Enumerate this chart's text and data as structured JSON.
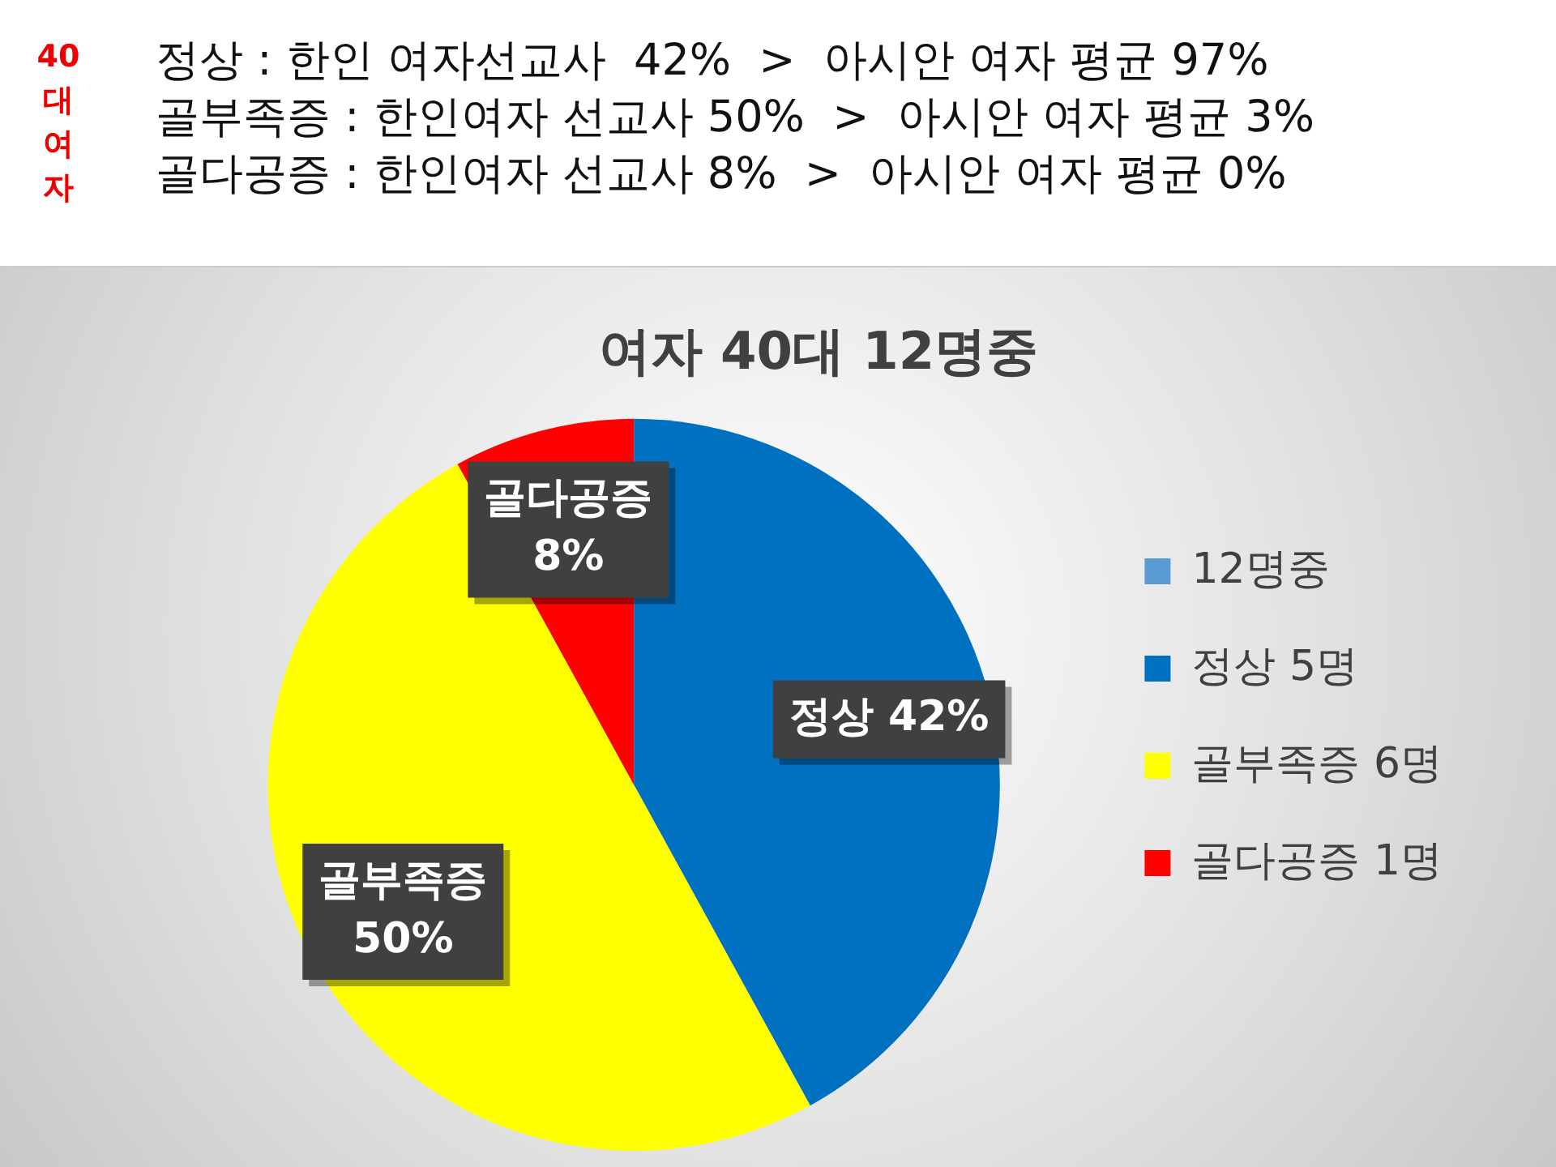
{
  "chart_data": {
    "type": "pie",
    "title": "여자 40대 12명중",
    "categories": [
      "12명중",
      "정상 5명",
      "골부족증 6명",
      "골다공증 1명"
    ],
    "values": [
      0,
      42,
      50,
      8
    ],
    "colors": [
      "#5b9bd5",
      "#0070c0",
      "#ffff00",
      "#ff0000"
    ],
    "value_labels": [
      null,
      "정상 42%",
      "골부족증 50%",
      "골다공증 8%"
    ],
    "legend": "right",
    "annotations": [
      "40대여자",
      "정상 : 한인 여자선교사  42%  >  아시안 여자 평균 97%",
      "골부족증 : 한인여자 선교사 50%  >  아시안 여자 평균 3%",
      "골다공증 : 한인여자 선교사 8%  >  아시안 여자 평균 0%"
    ]
  }
}
